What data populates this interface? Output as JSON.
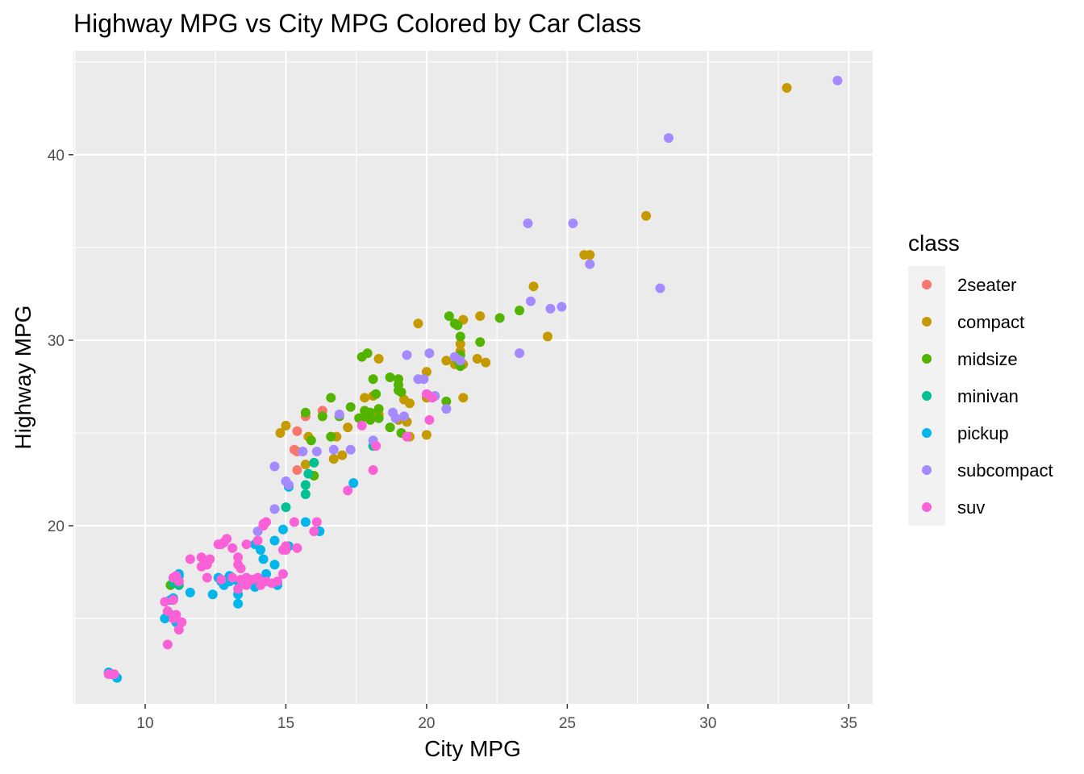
{
  "chart_data": {
    "type": "scatter",
    "title": "Highway MPG vs City MPG Colored by Car Class",
    "xlabel": "City MPG",
    "ylabel": "Highway MPG",
    "xlim": [
      7.45,
      35.85
    ],
    "ylim": [
      10.4,
      45.6
    ],
    "x_ticks": [
      10,
      15,
      20,
      25,
      30,
      35
    ],
    "y_ticks": [
      20,
      30,
      40
    ],
    "grid": true,
    "legend": {
      "title": "class",
      "position": "right"
    },
    "series": [
      {
        "name": "2seater",
        "color": "#F8766D",
        "points": [
          [
            15.4,
            25.1
          ],
          [
            15.7,
            25.9
          ],
          [
            16.3,
            26.2
          ],
          [
            15.3,
            24.1
          ],
          [
            15.4,
            24.0
          ],
          [
            15.4,
            23.0
          ]
        ]
      },
      {
        "name": "compact",
        "color": "#C49A00",
        "points": [
          [
            32.8,
            43.6
          ],
          [
            27.8,
            36.7
          ],
          [
            25.6,
            34.6
          ],
          [
            25.8,
            34.6
          ],
          [
            23.8,
            32.9
          ],
          [
            24.3,
            30.2
          ],
          [
            21.9,
            31.3
          ],
          [
            21.3,
            31.1
          ],
          [
            19.7,
            30.9
          ],
          [
            21.2,
            29.8
          ],
          [
            21.8,
            29.0
          ],
          [
            22.1,
            28.8
          ],
          [
            21.0,
            28.7
          ],
          [
            21.3,
            28.7
          ],
          [
            20.7,
            28.9
          ],
          [
            21.2,
            29.4
          ],
          [
            20.0,
            28.3
          ],
          [
            18.3,
            29.0
          ],
          [
            20.1,
            27.0
          ],
          [
            20.0,
            26.9
          ],
          [
            21.3,
            26.9
          ],
          [
            19.2,
            26.8
          ],
          [
            19.4,
            26.6
          ],
          [
            18.1,
            27.0
          ],
          [
            17.8,
            26.9
          ],
          [
            19.0,
            25.7
          ],
          [
            19.3,
            25.6
          ],
          [
            18.2,
            25.9
          ],
          [
            18.3,
            26.0
          ],
          [
            17.2,
            25.3
          ],
          [
            15.0,
            25.4
          ],
          [
            14.8,
            25.0
          ],
          [
            15.8,
            24.8
          ],
          [
            16.8,
            24.8
          ],
          [
            17.0,
            23.8
          ],
          [
            16.7,
            23.6
          ],
          [
            15.7,
            23.3
          ],
          [
            20.0,
            24.9
          ],
          [
            19.3,
            24.8
          ],
          [
            19.4,
            24.8
          ]
        ]
      },
      {
        "name": "midsize",
        "color": "#53B400",
        "points": [
          [
            20.8,
            31.3
          ],
          [
            21.1,
            30.8
          ],
          [
            21.0,
            30.9
          ],
          [
            22.6,
            31.2
          ],
          [
            23.3,
            31.6
          ],
          [
            21.2,
            30.2
          ],
          [
            21.9,
            29.9
          ],
          [
            17.9,
            29.3
          ],
          [
            17.7,
            29.1
          ],
          [
            21.2,
            29.2
          ],
          [
            21.1,
            28.9
          ],
          [
            21.2,
            28.6
          ],
          [
            18.1,
            27.9
          ],
          [
            18.7,
            28.0
          ],
          [
            19.0,
            27.9
          ],
          [
            19.0,
            27.6
          ],
          [
            19.0,
            27.3
          ],
          [
            18.2,
            27.1
          ],
          [
            19.1,
            27.2
          ],
          [
            16.6,
            26.9
          ],
          [
            17.3,
            26.4
          ],
          [
            18.3,
            26.3
          ],
          [
            18.0,
            26.1
          ],
          [
            17.8,
            26.2
          ],
          [
            17.9,
            25.9
          ],
          [
            17.7,
            25.8
          ],
          [
            17.6,
            25.8
          ],
          [
            18.0,
            25.7
          ],
          [
            18.3,
            25.8
          ],
          [
            16.3,
            25.9
          ],
          [
            16.9,
            25.9
          ],
          [
            15.7,
            26.1
          ],
          [
            18.7,
            25.3
          ],
          [
            19.1,
            25.0
          ],
          [
            20.7,
            26.7
          ],
          [
            15.9,
            24.6
          ],
          [
            16.6,
            24.8
          ],
          [
            17.9,
            26.0
          ],
          [
            16.0,
            22.7
          ],
          [
            10.9,
            16.8
          ]
        ]
      },
      {
        "name": "minivan",
        "color": "#00C094",
        "points": [
          [
            18.1,
            24.3
          ],
          [
            16.0,
            23.4
          ],
          [
            15.8,
            22.8
          ],
          [
            15.7,
            22.2
          ],
          [
            15.1,
            22.1
          ],
          [
            15.7,
            21.7
          ],
          [
            15.0,
            21.0
          ],
          [
            11.0,
            16.9
          ],
          [
            10.9,
            15.2
          ],
          [
            11.1,
            17.1
          ],
          [
            11.2,
            16.8
          ]
        ]
      },
      {
        "name": "pickup",
        "color": "#00B6EB",
        "points": [
          [
            8.7,
            12.1
          ],
          [
            9.0,
            11.8
          ],
          [
            8.8,
            12.0
          ],
          [
            11.2,
            17.4
          ],
          [
            11.0,
            16.1
          ],
          [
            10.9,
            16.0
          ],
          [
            10.7,
            15.0
          ],
          [
            10.9,
            15.1
          ],
          [
            11.1,
            14.8
          ],
          [
            11.6,
            16.4
          ],
          [
            12.4,
            16.3
          ],
          [
            12.7,
            17.0
          ],
          [
            12.8,
            16.8
          ],
          [
            12.9,
            17.1
          ],
          [
            13.0,
            17.0
          ],
          [
            13.3,
            16.3
          ],
          [
            13.3,
            15.8
          ],
          [
            13.3,
            17.0
          ],
          [
            13.9,
            16.7
          ],
          [
            14.0,
            17.1
          ],
          [
            14.3,
            17.4
          ],
          [
            14.7,
            16.8
          ],
          [
            14.6,
            17.9
          ],
          [
            14.2,
            18.2
          ],
          [
            14.1,
            18.7
          ],
          [
            13.9,
            19.0
          ],
          [
            14.6,
            19.2
          ],
          [
            14.9,
            19.8
          ],
          [
            15.1,
            18.9
          ],
          [
            15.7,
            20.2
          ],
          [
            16.2,
            19.7
          ],
          [
            17.4,
            22.3
          ],
          [
            15.1,
            22.1
          ],
          [
            11.2,
            17.3
          ],
          [
            10.8,
            15.2
          ],
          [
            12.6,
            17.2
          ],
          [
            13.0,
            17.3
          ],
          [
            14.7,
            16.9
          ],
          [
            10.8,
            15.1
          ]
        ]
      },
      {
        "name": "subcompact",
        "color": "#A58AFF",
        "points": [
          [
            34.6,
            44.0
          ],
          [
            28.6,
            40.9
          ],
          [
            23.6,
            36.3
          ],
          [
            25.2,
            36.3
          ],
          [
            25.8,
            34.1
          ],
          [
            28.3,
            32.8
          ],
          [
            23.7,
            32.1
          ],
          [
            24.4,
            31.7
          ],
          [
            24.8,
            31.8
          ],
          [
            23.3,
            29.3
          ],
          [
            20.1,
            29.3
          ],
          [
            19.3,
            29.2
          ],
          [
            21.0,
            29.1
          ],
          [
            21.2,
            28.9
          ],
          [
            19.7,
            27.9
          ],
          [
            19.9,
            27.9
          ],
          [
            20.7,
            26.3
          ],
          [
            18.8,
            26.1
          ],
          [
            19.2,
            25.9
          ],
          [
            18.9,
            25.8
          ],
          [
            16.9,
            26.0
          ],
          [
            18.1,
            24.6
          ],
          [
            17.3,
            24.1
          ],
          [
            16.1,
            24.0
          ],
          [
            15.6,
            24.0
          ],
          [
            16.7,
            24.1
          ],
          [
            14.6,
            23.2
          ],
          [
            15.0,
            22.4
          ],
          [
            15.1,
            22.2
          ],
          [
            14.6,
            20.9
          ],
          [
            14.0,
            19.7
          ],
          [
            20.3,
            27.0
          ]
        ]
      },
      {
        "name": "suv",
        "color": "#FB61D7",
        "points": [
          [
            20.0,
            27.1
          ],
          [
            20.2,
            26.9
          ],
          [
            17.7,
            25.4
          ],
          [
            18.2,
            24.3
          ],
          [
            20.1,
            25.7
          ],
          [
            19.3,
            24.8
          ],
          [
            18.1,
            23.0
          ],
          [
            17.2,
            21.9
          ],
          [
            15.3,
            20.2
          ],
          [
            16.1,
            20.2
          ],
          [
            16.0,
            19.7
          ],
          [
            14.3,
            20.2
          ],
          [
            14.2,
            20.1
          ],
          [
            14.0,
            19.2
          ],
          [
            13.6,
            19.0
          ],
          [
            12.9,
            19.3
          ],
          [
            12.8,
            19.1
          ],
          [
            12.7,
            19.0
          ],
          [
            13.1,
            18.8
          ],
          [
            15.0,
            18.9
          ],
          [
            15.4,
            18.8
          ],
          [
            14.9,
            18.7
          ],
          [
            13.3,
            18.3
          ],
          [
            13.3,
            17.9
          ],
          [
            13.4,
            17.7
          ],
          [
            12.0,
            18.3
          ],
          [
            12.3,
            18.2
          ],
          [
            11.6,
            18.2
          ],
          [
            12.0,
            17.8
          ],
          [
            12.2,
            17.9
          ],
          [
            12.2,
            17.2
          ],
          [
            12.7,
            17.1
          ],
          [
            13.1,
            17.2
          ],
          [
            13.4,
            17.1
          ],
          [
            13.8,
            17.1
          ],
          [
            14.0,
            17.2
          ],
          [
            14.1,
            16.8
          ],
          [
            14.3,
            17.0
          ],
          [
            14.5,
            16.9
          ],
          [
            13.6,
            16.8
          ],
          [
            13.3,
            16.6
          ],
          [
            14.9,
            17.4
          ],
          [
            14.7,
            17.0
          ],
          [
            11.0,
            17.2
          ],
          [
            11.1,
            17.3
          ],
          [
            11.2,
            17.0
          ],
          [
            11.0,
            16.0
          ],
          [
            10.7,
            15.9
          ],
          [
            10.8,
            15.4
          ],
          [
            11.0,
            15.0
          ],
          [
            11.1,
            15.2
          ],
          [
            11.3,
            14.8
          ],
          [
            11.2,
            14.4
          ],
          [
            10.8,
            13.6
          ],
          [
            8.7,
            12.0
          ],
          [
            8.9,
            12.0
          ],
          [
            15.0,
            18.7
          ],
          [
            14.2,
            20.0
          ],
          [
            12.6,
            19.0
          ],
          [
            13.6,
            17.2
          ]
        ]
      }
    ]
  }
}
